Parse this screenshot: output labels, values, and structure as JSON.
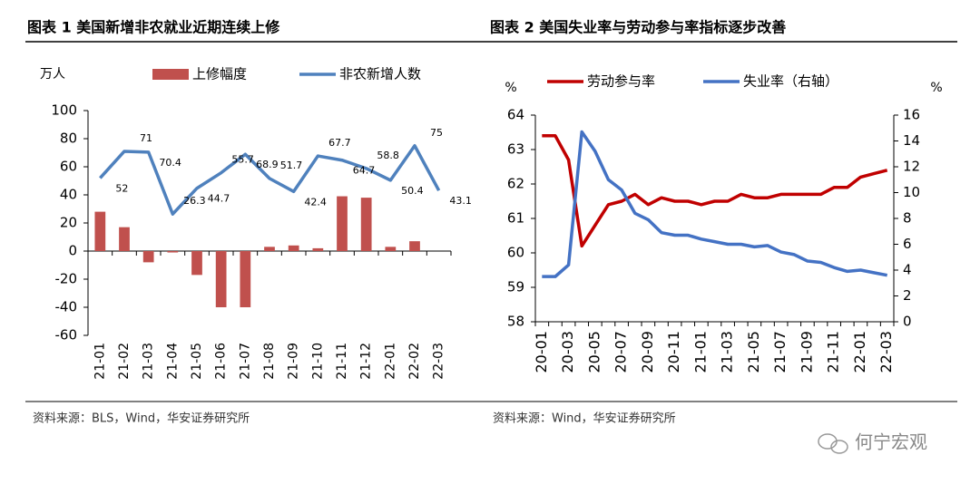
{
  "chart_data": [
    {
      "type": "combo",
      "title": "图表 1 美国新增非农就业近期连续上修",
      "y_label": "万人",
      "categories": [
        "21-01",
        "21-02",
        "21-03",
        "21-04",
        "21-05",
        "21-06",
        "21-07",
        "21-08",
        "21-09",
        "21-10",
        "21-11",
        "21-12",
        "22-01",
        "22-02",
        "22-03"
      ],
      "series": [
        {
          "name": "上修幅度",
          "type": "bar",
          "color": "#c0504d",
          "values": [
            28,
            17,
            -8,
            -1,
            -17,
            -40,
            -40,
            3,
            4,
            2,
            39,
            38,
            3,
            7,
            null
          ]
        },
        {
          "name": "非农新增人数",
          "type": "line",
          "color": "#4f81bd",
          "data_labels": true,
          "values": [
            52,
            71,
            70.4,
            26.3,
            44.7,
            55.7,
            68.9,
            51.7,
            42.4,
            67.7,
            64.7,
            58.8,
            50.4,
            75,
            43.1
          ]
        }
      ],
      "ylim": [
        -60,
        100
      ],
      "yticks": [
        -60,
        -40,
        -20,
        0,
        20,
        40,
        60,
        80,
        100
      ],
      "legend": "top",
      "source": "资料来源：BLS，Wind，华安证券研究所"
    },
    {
      "type": "line",
      "title": "图表 2 美国失业率与劳动参与率指标逐步改善",
      "y_label": "%",
      "y2_label": "%",
      "categories": [
        "20-01",
        null,
        "20-03",
        null,
        "20-05",
        null,
        "20-07",
        null,
        "20-09",
        null,
        "20-11",
        null,
        "21-01",
        null,
        "21-03",
        null,
        "21-05",
        null,
        "21-07",
        null,
        "21-09",
        null,
        "21-11",
        null,
        "22-01",
        null,
        "22-03"
      ],
      "series": [
        {
          "name": "劳动参与率",
          "type": "line",
          "color": "#c00000",
          "values": [
            63.4,
            63.4,
            62.7,
            60.2,
            60.8,
            61.4,
            61.5,
            61.7,
            61.4,
            61.6,
            61.5,
            61.5,
            61.4,
            61.5,
            61.5,
            61.7,
            61.6,
            61.6,
            61.7,
            61.7,
            61.7,
            61.7,
            61.9,
            61.9,
            62.2,
            62.3,
            62.4
          ]
        },
        {
          "name": "失业率（右轴）",
          "type": "line",
          "axis": "y2",
          "color": "#4472c4",
          "values": [
            3.5,
            3.5,
            4.4,
            14.7,
            13.2,
            11.0,
            10.2,
            8.4,
            7.9,
            6.9,
            6.7,
            6.7,
            6.4,
            6.2,
            6.0,
            6.0,
            5.8,
            5.9,
            5.4,
            5.2,
            4.7,
            4.6,
            4.2,
            3.9,
            4.0,
            3.8,
            3.6
          ]
        }
      ],
      "ylim": [
        58,
        64
      ],
      "yticks": [
        58,
        59,
        60,
        61,
        62,
        63,
        64
      ],
      "y2lim": [
        0,
        16
      ],
      "y2ticks": [
        0,
        2,
        4,
        6,
        8,
        10,
        12,
        14,
        16
      ],
      "legend": "top",
      "source": "资料来源：Wind，华安证券研究所"
    }
  ],
  "watermark": "何宁宏观"
}
